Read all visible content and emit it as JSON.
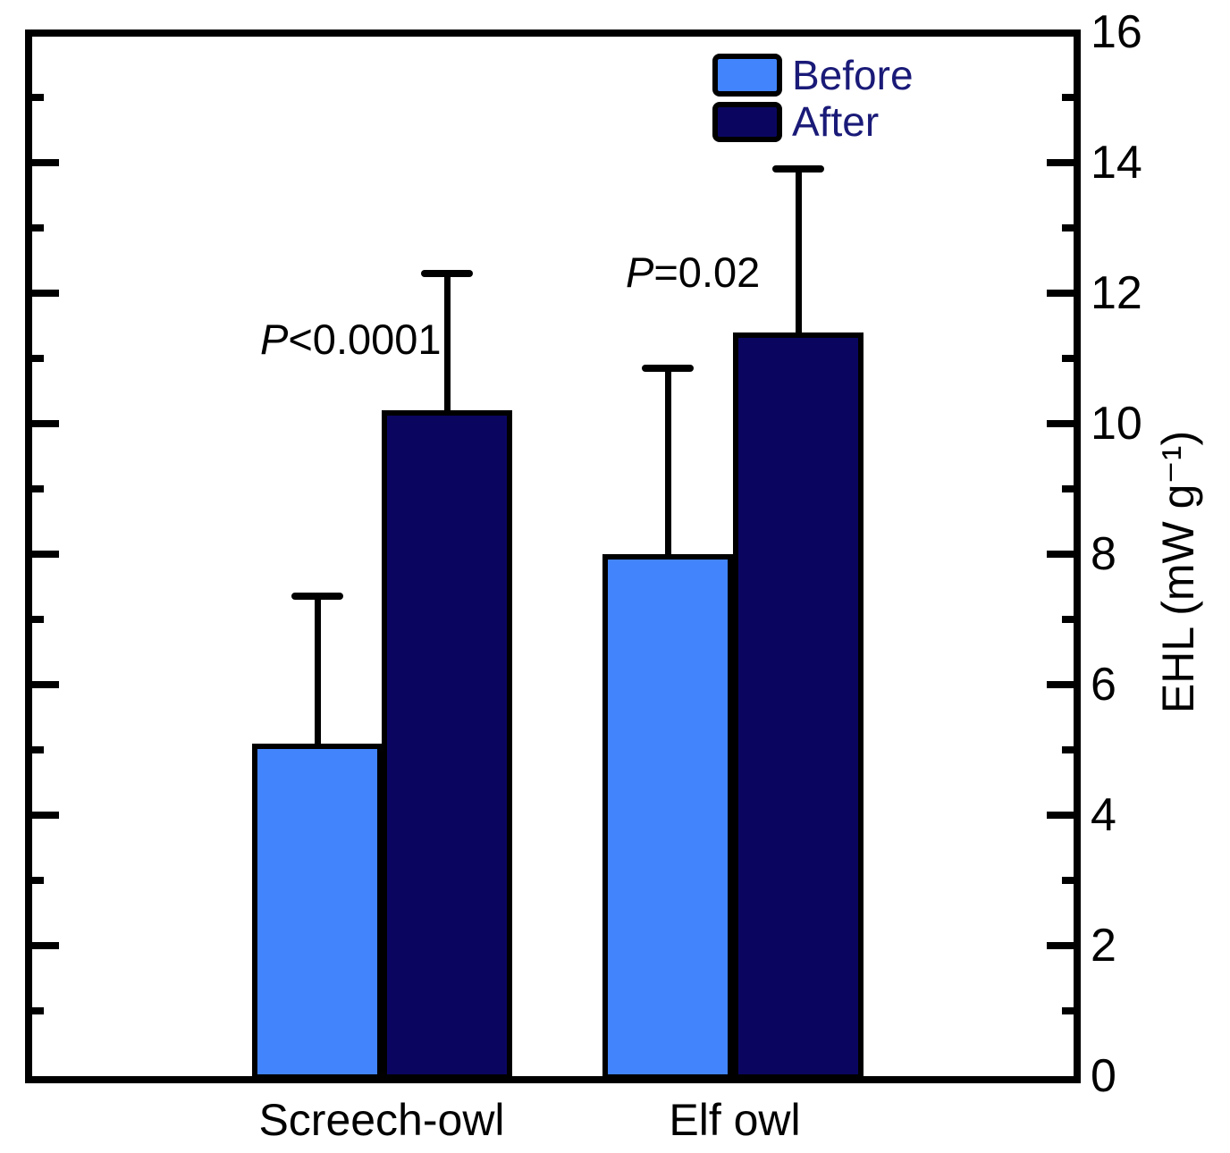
{
  "chart_data": {
    "type": "bar",
    "title": "",
    "categories": [
      "Screech-owl",
      "Elf owl"
    ],
    "series": [
      {
        "name": "Before",
        "color": "#4284FC",
        "values": [
          5.1,
          8.0
        ],
        "error_upper": [
          2.25,
          2.85
        ]
      },
      {
        "name": "After",
        "color": "#0A0660",
        "values": [
          10.2,
          11.4
        ],
        "error_upper": [
          2.1,
          2.5
        ]
      }
    ],
    "xlabel": "",
    "ylabel": "EHL (mW g⁻¹)",
    "ylim": [
      0,
      16
    ],
    "y_major_ticks": [
      0,
      2,
      4,
      6,
      8,
      10,
      12,
      14,
      16
    ],
    "y_minor_ticks": [
      1,
      3,
      5,
      7,
      9,
      11,
      13,
      15
    ],
    "y_axis_side": "right",
    "grid": "off",
    "axis_color": "#000000",
    "legend": {
      "position": "top-center-inside",
      "text_color": "#1A1A78",
      "items": [
        {
          "label": "Before"
        },
        {
          "label": "After"
        }
      ]
    },
    "annotations": [
      {
        "prefix": "P",
        "rest": "<0.0001",
        "category": "Screech-owl"
      },
      {
        "prefix": "P",
        "rest": "=0.02",
        "category": "Elf owl"
      }
    ]
  }
}
